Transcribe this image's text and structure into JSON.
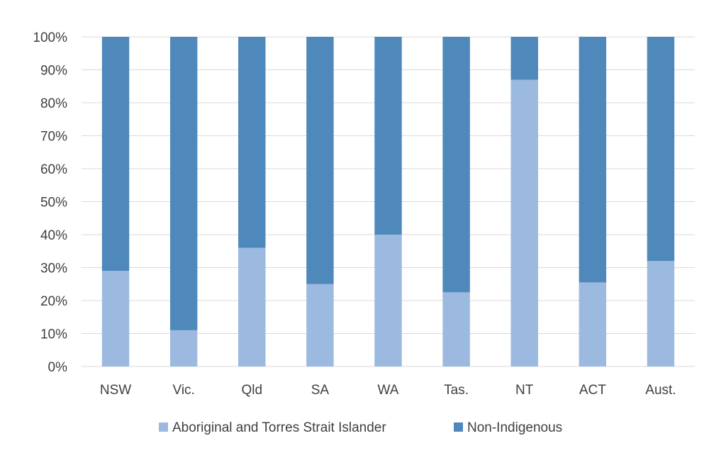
{
  "chart_data": {
    "type": "bar",
    "stacked": true,
    "percent": true,
    "title": "",
    "xlabel": "",
    "ylabel": "",
    "ylim": [
      0,
      100
    ],
    "yticks": [
      "0%",
      "10%",
      "20%",
      "30%",
      "40%",
      "50%",
      "60%",
      "70%",
      "80%",
      "90%",
      "100%"
    ],
    "grid": true,
    "legend_position": "bottom",
    "categories": [
      "NSW",
      "Vic.",
      "Qld",
      "SA",
      "WA",
      "Tas.",
      "NT",
      "ACT",
      "Aust."
    ],
    "series": [
      {
        "name": "Aboriginal and Torres Strait Islander",
        "color": "#9cb9e0",
        "values": [
          29,
          11,
          36,
          25,
          40,
          22.5,
          87,
          25.5,
          32
        ]
      },
      {
        "name": "Non-Indigenous",
        "color": "#4f88bb",
        "values": [
          71,
          89,
          64,
          75,
          60,
          77.5,
          13,
          74.5,
          68
        ]
      }
    ]
  }
}
